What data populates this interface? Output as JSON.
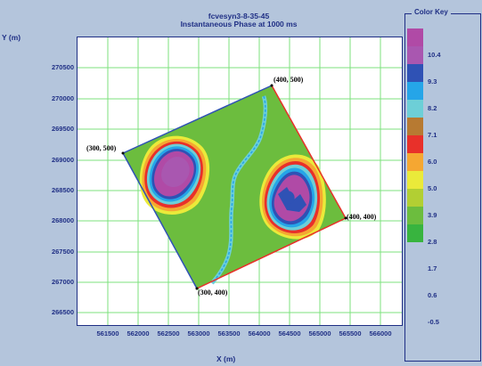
{
  "header": {
    "title": "fcvesyn3-8-35-45",
    "subtitle": "Instantaneous Phase at 1000 ms"
  },
  "axes": {
    "ylabel": "Y (m)",
    "xlabel": "X (m)",
    "y_ticks": [
      "270500",
      "270000",
      "269500",
      "269000",
      "268500",
      "268000",
      "267500",
      "267000",
      "266500"
    ],
    "x_ticks": [
      "561500",
      "562000",
      "562500",
      "563000",
      "563500",
      "564000",
      "564500",
      "565000",
      "565500",
      "566000"
    ],
    "grid": "on",
    "grid_color": "#7ce27c"
  },
  "colorkey": {
    "title": "Color Key",
    "swatches": [
      "#b04aa6",
      "#a957b0",
      "#2f52b5",
      "#25a5e8",
      "#6dcfd7",
      "#b77a32",
      "#e8302a",
      "#f5a732",
      "#eaea3a",
      "#b2cf33",
      "#6cbd3e",
      "#38b43f"
    ],
    "labels": [
      "10.4",
      "9.3",
      "8.2",
      "7.1",
      "6.0",
      "5.0",
      "3.9",
      "2.8",
      "1.7",
      "0.6",
      "-0.5"
    ]
  },
  "survey": {
    "corner_labels": [
      "(300, 500)",
      "(400, 500)",
      "(400, 400)",
      "(300, 400)"
    ],
    "background_color": "#6cbd3e",
    "edge_colors": {
      "inline_edge": "#e8302a",
      "crossline_edge": "#2f52b5"
    }
  }
}
